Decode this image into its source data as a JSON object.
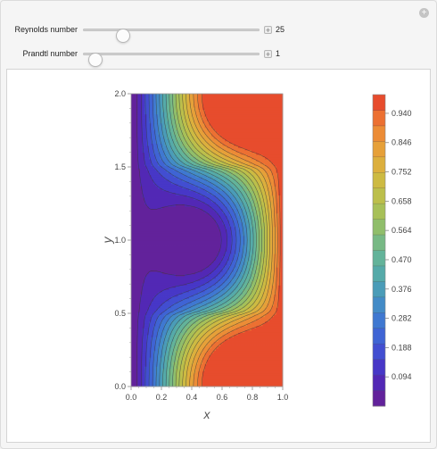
{
  "controls": {
    "reynolds": {
      "label": "Reynolds number",
      "value": "25",
      "fraction": 0.2
    },
    "prandtl": {
      "label": "Prandtl number",
      "value": "1",
      "fraction": 0.03
    }
  },
  "chart_data": {
    "type": "contour",
    "xlabel": "x",
    "ylabel": "y",
    "xlim": [
      0.0,
      1.0
    ],
    "ylim": [
      0.0,
      2.0
    ],
    "x_ticks": [
      "0.0",
      "0.2",
      "0.4",
      "0.6",
      "0.8",
      "1.0"
    ],
    "y_ticks": [
      "0.0",
      "0.5",
      "1.0",
      "1.5",
      "2.0"
    ],
    "legend_ticks": [
      "0.094",
      "0.188",
      "0.282",
      "0.376",
      "0.470",
      "0.564",
      "0.658",
      "0.752",
      "0.846",
      "0.940"
    ],
    "levels": 20,
    "value_range": [
      0.0,
      1.0
    ],
    "colormap": [
      "#6a1f8e",
      "#4a2bc2",
      "#3f5ad6",
      "#3f82cf",
      "#4ea5b0",
      "#6ab792",
      "#9cc05e",
      "#c6bf44",
      "#e3aa3a",
      "#ef8234",
      "#e43a2a"
    ],
    "legend_position": "right"
  }
}
